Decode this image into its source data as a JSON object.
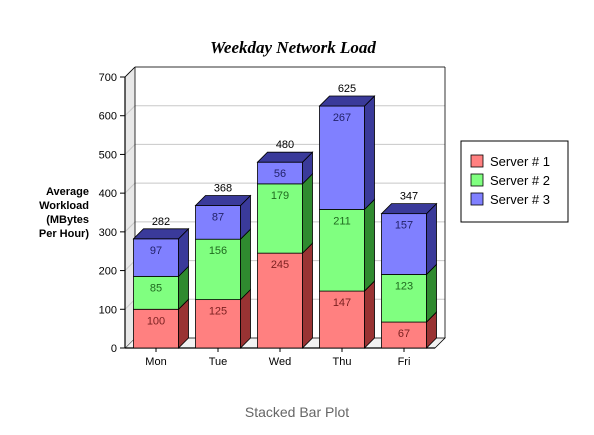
{
  "caption": "Stacked Bar Plot",
  "chart_data": {
    "type": "bar",
    "stacked": true,
    "style": "3d",
    "title": "Weekday Network Load",
    "xlabel": "",
    "ylabel": [
      "Average",
      "Workload",
      "(MBytes",
      "Per Hour)"
    ],
    "ylim": [
      0,
      700
    ],
    "yticks": [
      0,
      100,
      200,
      300,
      400,
      500,
      600,
      700
    ],
    "grid": true,
    "legend_position": "right",
    "categories": [
      "Mon",
      "Tue",
      "Wed",
      "Thu",
      "Fri"
    ],
    "series": [
      {
        "name": "Server # 1",
        "values": [
          100,
          125,
          245,
          147,
          67
        ],
        "color": "#ff8080",
        "side_color": "#993333",
        "label_color": "#7a1f1f"
      },
      {
        "name": "Server # 2",
        "values": [
          85,
          156,
          179,
          211,
          123
        ],
        "color": "#80ff80",
        "side_color": "#2f8a2f",
        "label_color": "#1f6a1f"
      },
      {
        "name": "Server # 3",
        "values": [
          97,
          87,
          56,
          267,
          157
        ],
        "color": "#8080ff",
        "side_color": "#3a3a9a",
        "label_color": "#22226a"
      }
    ],
    "totals": [
      282,
      368,
      480,
      625,
      347
    ]
  }
}
